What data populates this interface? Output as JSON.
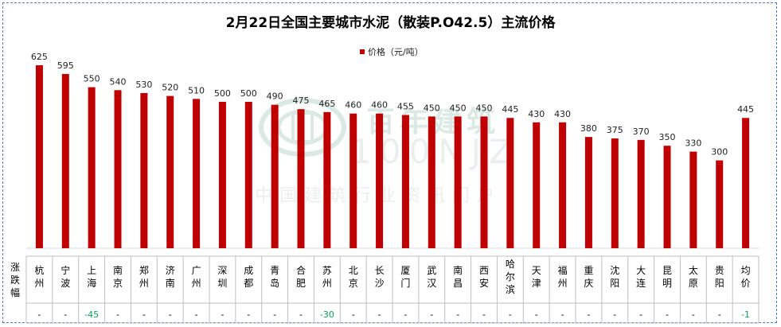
{
  "chart_data": {
    "type": "bar",
    "title": "2月22日全国主要城市水泥（散装P.O42.5）主流价格",
    "series": [
      {
        "name": "价格（元/吨）",
        "color": "#c00000",
        "values": [
          625,
          595,
          550,
          540,
          530,
          520,
          510,
          500,
          500,
          490,
          475,
          465,
          460,
          460,
          455,
          450,
          450,
          450,
          445,
          430,
          430,
          380,
          375,
          370,
          350,
          330,
          300,
          445
        ]
      }
    ],
    "categories": [
      "杭州",
      "宁波",
      "上海",
      "南京",
      "郑州",
      "济南",
      "广州",
      "深圳",
      "成都",
      "青岛",
      "合肥",
      "苏州",
      "北京",
      "长沙",
      "厦门",
      "武汉",
      "南昌",
      "西安",
      "哈尔滨",
      "天津",
      "福州",
      "重庆",
      "沈阳",
      "大连",
      "昆明",
      "太原",
      "贵阳",
      "均价"
    ],
    "change_row_label": "涨跌幅",
    "changes": [
      "-",
      "-",
      "-45",
      "-",
      "-",
      "-",
      "-",
      "-",
      "-",
      "-",
      "-",
      "-30",
      "-",
      "-",
      "-",
      "-",
      "-",
      "-",
      "-",
      "-",
      "-",
      "-",
      "-",
      "-",
      "-",
      "-",
      "-",
      "-1"
    ],
    "change_colors": {
      "negative": "#00a651",
      "neutral": "#000000"
    },
    "ylim": [
      0,
      625
    ],
    "grid": false,
    "legend_position": "top"
  },
  "watermark": {
    "name_cn": "百年建筑",
    "name_en": "100NJZ",
    "tagline": "中国建筑行业资讯门户"
  }
}
